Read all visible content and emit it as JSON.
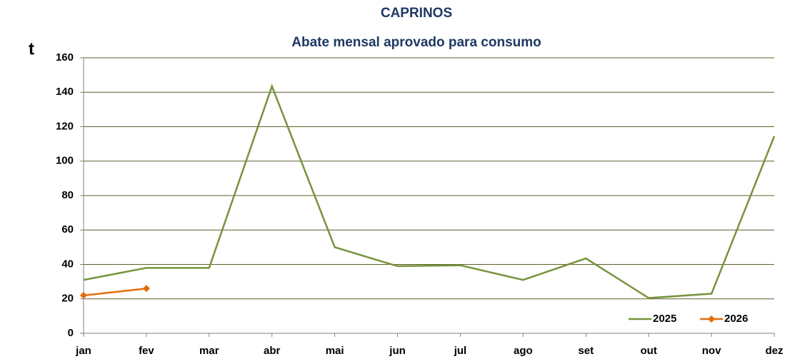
{
  "chart_data": {
    "type": "line",
    "title": "CAPRINOS",
    "subtitle": "Abate mensal aprovado para consumo",
    "ylabel": "t",
    "categories": [
      "jan",
      "fev",
      "mar",
      "abr",
      "mai",
      "jun",
      "jul",
      "ago",
      "set",
      "out",
      "nov",
      "dez"
    ],
    "series": [
      {
        "name": "2025",
        "color": "#77933c",
        "marker": false,
        "values": [
          31,
          38,
          38,
          143.5,
          50,
          39,
          39.5,
          31,
          43.5,
          20.5,
          23,
          114.5
        ]
      },
      {
        "name": "2026",
        "color": "#e36c09",
        "marker": true,
        "values": [
          22,
          26,
          null,
          null,
          null,
          null,
          null,
          null,
          null,
          null,
          null,
          null
        ]
      }
    ],
    "ylim": [
      0,
      160
    ],
    "yticks": [
      0,
      20,
      40,
      60,
      80,
      100,
      120,
      140,
      160
    ],
    "grid": true,
    "legend": "lower right"
  }
}
